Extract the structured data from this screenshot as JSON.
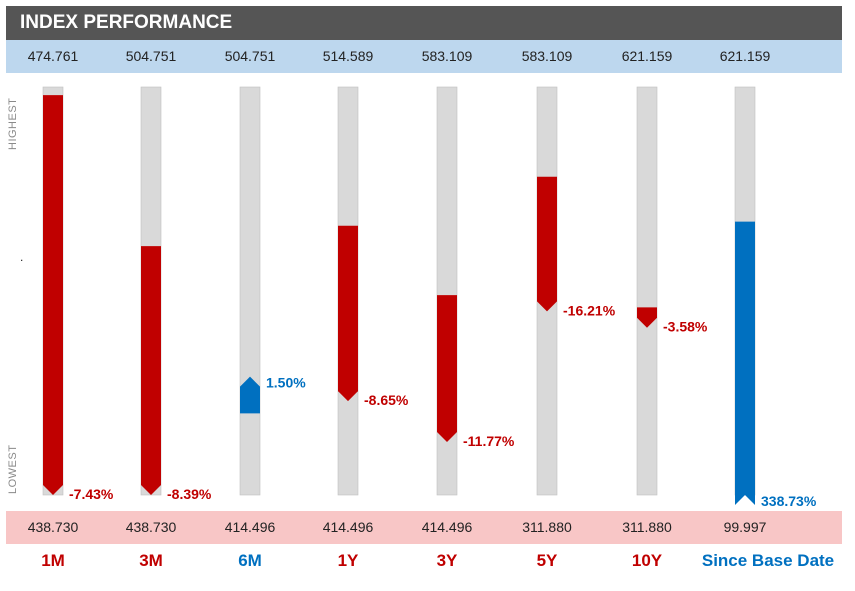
{
  "title": "INDEX PERFORMANCE",
  "axis": {
    "top_label": "HIGHEST",
    "bottom_label": "LOWEST",
    "middle_mark": "."
  },
  "colors": {
    "negative": "#c00000",
    "positive": "#0070c0",
    "track": "#d9d9d9",
    "track_border": "#bfbfbf"
  },
  "chart_data": {
    "type": "bar",
    "categories": [
      "1M",
      "3M",
      "6M",
      "1Y",
      "3Y",
      "5Y",
      "10Y",
      "Since Base Date"
    ],
    "series": [
      {
        "values": [
          474.761,
          504.751,
          504.751,
          514.589,
          583.109,
          583.109,
          621.159,
          621.159
        ]
      },
      {
        "values": [
          438.73,
          438.73,
          414.496,
          414.496,
          414.496,
          311.88,
          311.88,
          99.997
        ]
      },
      {
        "values": [
          -7.43,
          -8.39,
          1.5,
          -8.65,
          -11.77,
          -16.21,
          -3.58,
          338.73
        ]
      }
    ],
    "highest_labels": [
      "474.761",
      "504.751",
      "504.751",
      "514.589",
      "583.109",
      "583.109",
      "621.159",
      "621.159"
    ],
    "lowest_labels": [
      "438.730",
      "438.730",
      "414.496",
      "414.496",
      "414.496",
      "311.880",
      "311.880",
      "99.997"
    ],
    "change_labels": [
      "-7.43%",
      "-8.39%",
      "1.50%",
      "-8.65%",
      "-11.77%",
      "-16.21%",
      "-3.58%",
      "338.73%"
    ],
    "start_position": [
      0.98,
      0.61,
      0.2,
      0.66,
      0.49,
      0.78,
      0.46,
      0.67
    ],
    "end_position": [
      0.0,
      0.0,
      0.29,
      0.23,
      0.13,
      0.45,
      0.41,
      0.0
    ]
  }
}
